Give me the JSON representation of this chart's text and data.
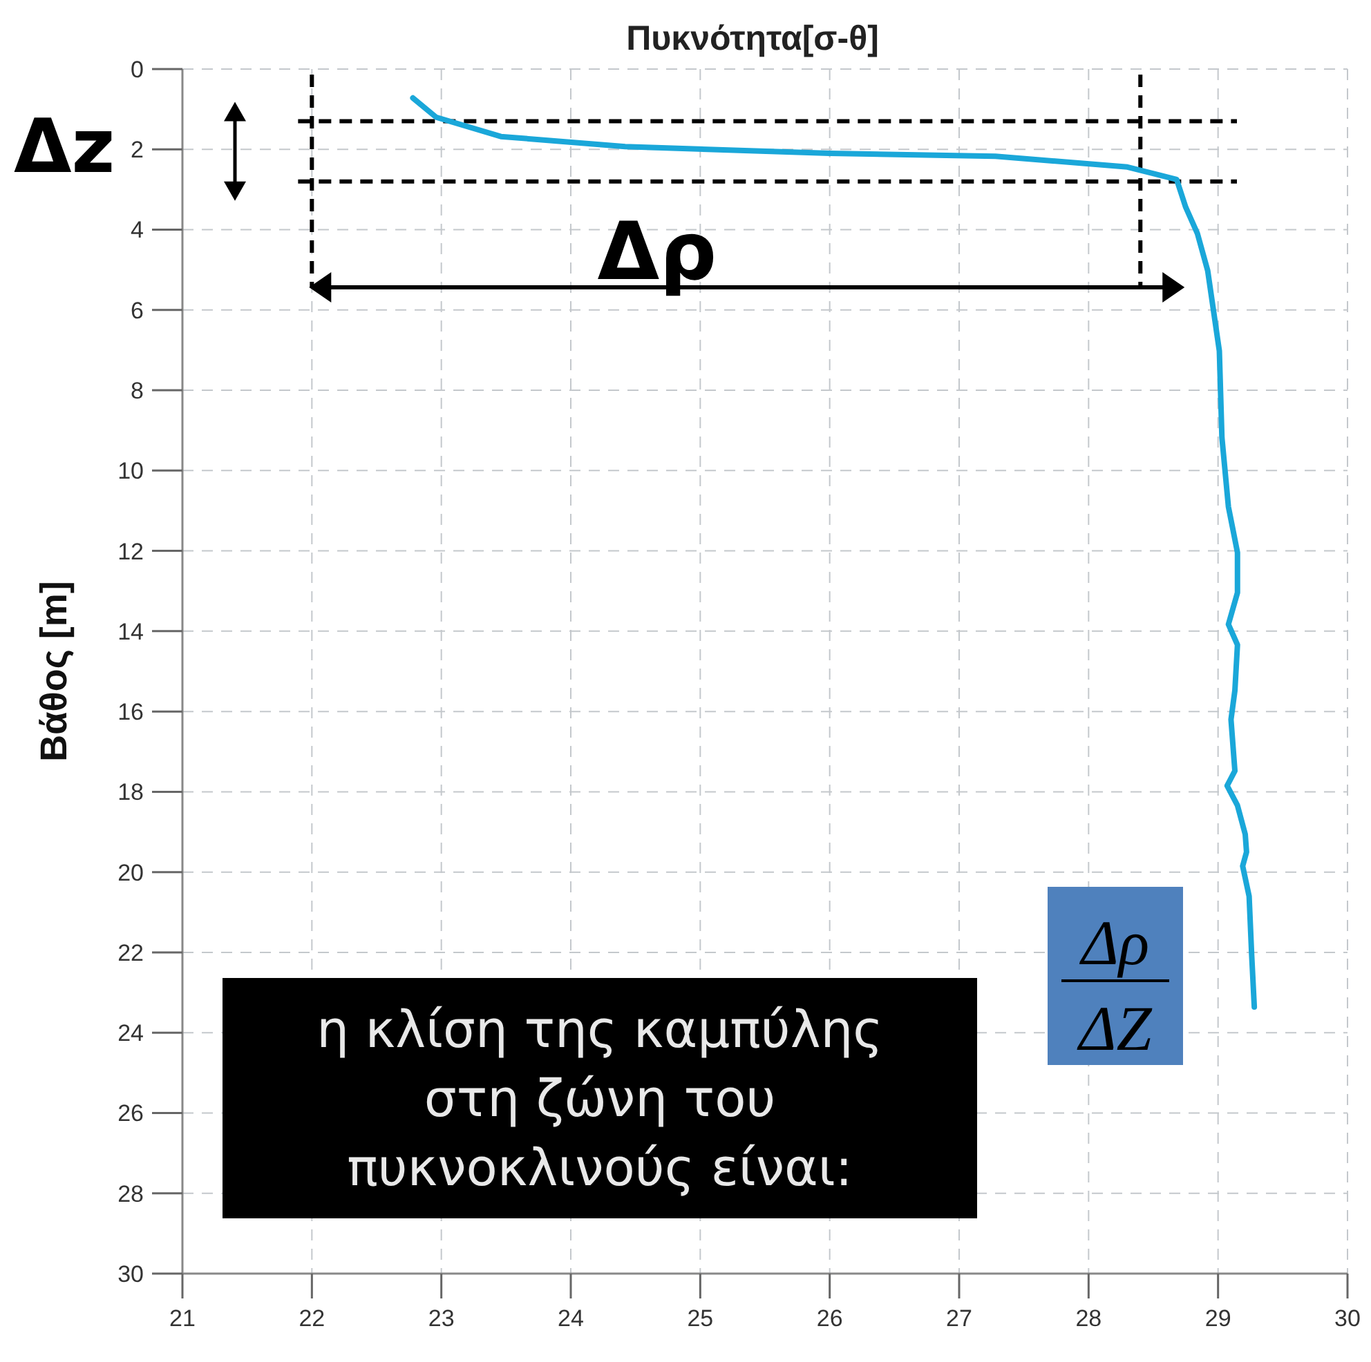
{
  "chart_data": {
    "type": "line",
    "title": "Πυκνότητα[σ-θ]",
    "ylabel": "Βάθος [m]",
    "xlim": [
      21,
      30
    ],
    "xticks": [
      21,
      22,
      23,
      24,
      25,
      26,
      27,
      28,
      29,
      30
    ],
    "ylim": [
      30,
      0
    ],
    "yticks": [
      0,
      2,
      4,
      6,
      8,
      10,
      12,
      14,
      16,
      18,
      20,
      22,
      24,
      26,
      28,
      30
    ],
    "grid": true,
    "marker": "none",
    "line_style": "solid",
    "series": [
      {
        "color": "#1aa7d9",
        "x": [
          22.78,
          22.96,
          23.46,
          24.42,
          26.0,
          27.28,
          28.3,
          28.56,
          28.68,
          28.75,
          28.84,
          28.92,
          29.01,
          29.03,
          29.08,
          29.15,
          29.15,
          29.08,
          29.15,
          29.13,
          29.1,
          29.13,
          29.07,
          29.15,
          29.21,
          29.22,
          29.19,
          29.24,
          29.26,
          29.28
        ],
        "values": [
          0.72,
          1.2,
          1.68,
          1.93,
          2.1,
          2.17,
          2.44,
          2.65,
          2.75,
          3.44,
          4.09,
          5.02,
          7.02,
          9.18,
          10.9,
          12.04,
          13.04,
          13.83,
          14.34,
          15.48,
          16.2,
          17.48,
          17.85,
          18.34,
          19.06,
          19.5,
          19.85,
          20.6,
          22.08,
          23.36
        ]
      }
    ],
    "ref_lines": [
      {
        "axis": "x",
        "value": 22,
        "color": "#000000",
        "line_style": "dashed"
      },
      {
        "axis": "x",
        "value": 28.4,
        "color": "#000000",
        "line_style": "dashed"
      },
      {
        "axis": "y",
        "value": 1.3,
        "color": "#000000",
        "line_style": "dashed"
      },
      {
        "axis": "y",
        "value": 2.8,
        "color": "#000000",
        "line_style": "dashed"
      }
    ],
    "annotations": [
      "Δz",
      "Δρ",
      "η κλίση της καμπύλης\nστη ζώνη του\nπυκνοκλινούς είναι:",
      "Δρ",
      "ΔZ"
    ]
  }
}
